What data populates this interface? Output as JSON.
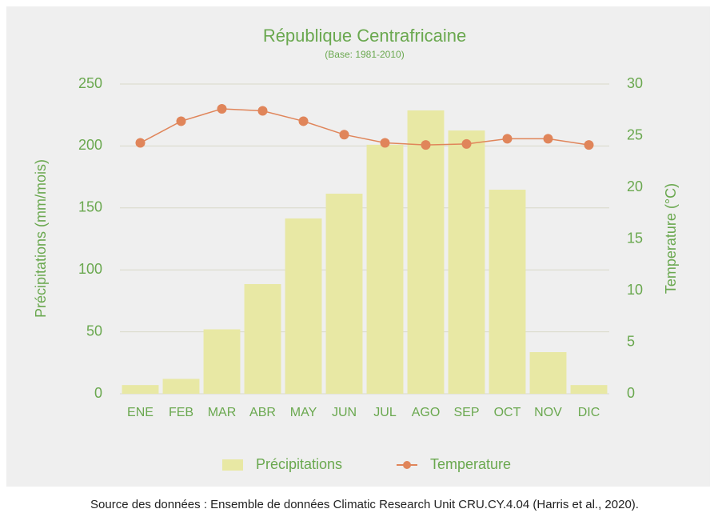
{
  "chart_data": {
    "type": "bar",
    "title": "République Centrafricaine",
    "subtitle": "(Base: 1981-2010)",
    "categories": [
      "ENE",
      "FEB",
      "MAR",
      "ABR",
      "MAY",
      "JUN",
      "JUL",
      "AGO",
      "SEP",
      "OCT",
      "NOV",
      "DIC"
    ],
    "series": [
      {
        "name": "Précipitations",
        "color": "#e8e8a4",
        "type": "bar",
        "values": [
          7,
          12,
          52,
          88.5,
          141.5,
          161.5,
          201,
          228.7,
          212.5,
          164.7,
          33.6,
          7
        ]
      },
      {
        "name": "Temperature",
        "color": "#e0855a",
        "type": "line",
        "axis": "y2",
        "values": [
          24.3,
          26.4,
          27.6,
          27.4,
          26.4,
          25.1,
          24.3,
          24.1,
          24.2,
          24.7,
          24.7,
          24.1
        ]
      }
    ],
    "ylabel": "Précipitations (mm/mois)",
    "y2label": "Temperature (°C)",
    "ylim": [
      0,
      250
    ],
    "yticks": [
      0,
      50,
      100,
      150,
      200,
      250
    ],
    "y2lim": [
      0,
      30
    ],
    "y2ticks": [
      0,
      5,
      10,
      15,
      20,
      25,
      30
    ],
    "grid": true,
    "legend": "bottom",
    "source": "Source des données : Ensemble de données Climatic Research Unit CRU.CY.4.04 (Harris et al., 2020)."
  }
}
